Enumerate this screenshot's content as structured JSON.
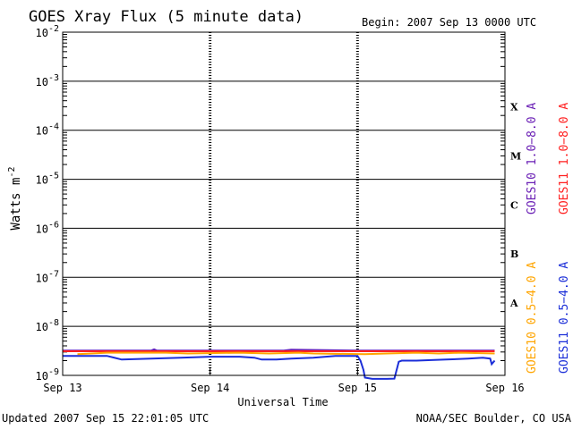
{
  "chart_data": {
    "type": "line",
    "title": "GOES Xray Flux (5 minute data)",
    "begin_label": "Begin:  2007 Sep 13 0000 UTC",
    "xlabel": "Universal Time",
    "ylabel": "Watts m",
    "ylabel_sup": "-2",
    "yscale": "log",
    "ylim": [
      1e-09,
      0.01
    ],
    "y_ticks": [
      {
        "base": "10",
        "exp": "-2",
        "value": 0.01
      },
      {
        "base": "10",
        "exp": "-3",
        "value": 0.001
      },
      {
        "base": "10",
        "exp": "-4",
        "value": 0.0001
      },
      {
        "base": "10",
        "exp": "-5",
        "value": 1e-05
      },
      {
        "base": "10",
        "exp": "-6",
        "value": 1e-06
      },
      {
        "base": "10",
        "exp": "-7",
        "value": 1e-07
      },
      {
        "base": "10",
        "exp": "-8",
        "value": 1e-08
      },
      {
        "base": "10",
        "exp": "-9",
        "value": 1e-09
      }
    ],
    "xlim": [
      0,
      3
    ],
    "x_ticks": [
      {
        "label": "Sep 13",
        "value": 0
      },
      {
        "label": "Sep 14",
        "value": 1
      },
      {
        "label": "Sep 15",
        "value": 2
      },
      {
        "label": "Sep 16",
        "value": 3
      }
    ],
    "flare_classes": [
      {
        "label": "X",
        "value": 0.0003
      },
      {
        "label": "M",
        "value": 3e-05
      },
      {
        "label": "C",
        "value": 3e-06
      },
      {
        "label": "B",
        "value": 3e-07
      },
      {
        "label": "A",
        "value": 3e-08
      }
    ],
    "legend_right": [
      {
        "name": "GOES10 1.0−8.0 A",
        "color": "#6a1fb5"
      },
      {
        "name": "GOES11 1.0−8.0 A",
        "color": "#ff2020"
      },
      {
        "name": "GOES10 0.5−4.0 A",
        "color": "#ffa500"
      },
      {
        "name": "GOES11 0.5−4.0 A",
        "color": "#1b2ed8"
      }
    ],
    "grid": true,
    "series": [
      {
        "name": "GOES10 1.0−8.0 A",
        "color": "#6a1fb5",
        "x": [
          0.0,
          0.6,
          0.62,
          0.64,
          1.0,
          1.5,
          1.55,
          2.0,
          2.5,
          2.93
        ],
        "y": [
          3.2e-09,
          3.2e-09,
          3.4e-09,
          3.2e-09,
          3.2e-09,
          3.2e-09,
          3.35e-09,
          3.2e-09,
          3.2e-09,
          3.2e-09
        ]
      },
      {
        "name": "GOES11 1.0−8.0 A",
        "color": "#ff2020",
        "x": [
          0.0,
          0.5,
          1.0,
          1.5,
          2.0,
          2.5,
          2.93
        ],
        "y": [
          3.1e-09,
          3.1e-09,
          3.1e-09,
          3.1e-09,
          3.1e-09,
          3.1e-09,
          3.1e-09
        ]
      },
      {
        "name": "GOES10 0.5−4.0 A",
        "color": "#ffa500",
        "x": [
          0.1,
          0.2,
          0.3,
          0.5,
          0.7,
          0.85,
          1.2,
          1.4,
          1.6,
          1.7,
          2.05,
          2.2,
          2.4,
          2.55,
          2.7,
          2.93
        ],
        "y": [
          2.7e-09,
          2.8e-09,
          2.9e-09,
          2.9e-09,
          2.9e-09,
          2.8e-09,
          2.9e-09,
          2.8e-09,
          2.9e-09,
          2.8e-09,
          2.7e-09,
          2.8e-09,
          2.9e-09,
          2.8e-09,
          2.9e-09,
          2.8e-09
        ]
      },
      {
        "name": "GOES11 0.5−4.0 A",
        "color": "#1b2ed8",
        "x": [
          0.0,
          0.1,
          0.25,
          0.3,
          0.4,
          0.6,
          0.8,
          1.0,
          1.2,
          1.3,
          1.35,
          1.45,
          1.55,
          1.7,
          1.85,
          1.95,
          2.0,
          2.02,
          2.04,
          2.05,
          2.1,
          2.2,
          2.25,
          2.28,
          2.3,
          2.4,
          2.6,
          2.75,
          2.85,
          2.9,
          2.91,
          2.93
        ],
        "y": [
          2.5e-09,
          2.5e-09,
          2.5e-09,
          2.5e-09,
          2.1e-09,
          2.2e-09,
          2.3e-09,
          2.4e-09,
          2.4e-09,
          2.3e-09,
          2.1e-09,
          2.1e-09,
          2.2e-09,
          2.3e-09,
          2.5e-09,
          2.5e-09,
          2.5e-09,
          2e-09,
          1.3e-09,
          9e-10,
          8.5e-10,
          8.5e-10,
          8.6e-10,
          1.9e-09,
          2e-09,
          2e-09,
          2.1e-09,
          2.2e-09,
          2.3e-09,
          2.2e-09,
          1.7e-09,
          2e-09
        ]
      }
    ]
  },
  "footer": {
    "updated": "Updated 2007 Sep 15 22:01:05 UTC",
    "source": "NOAA/SEC Boulder, CO USA"
  }
}
